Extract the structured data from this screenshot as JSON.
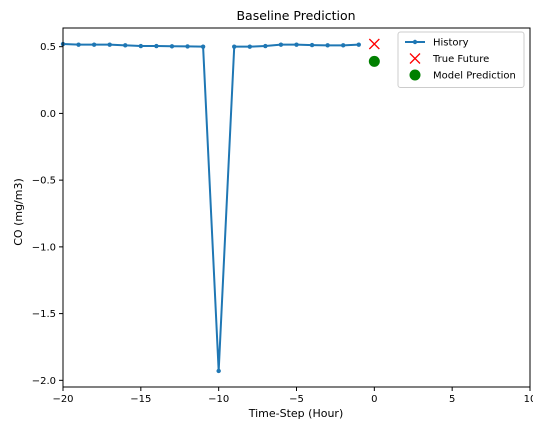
{
  "chart_data": {
    "type": "line",
    "title": "Baseline Prediction",
    "xlabel": "Time-Step (Hour)",
    "ylabel": "CO (mg/m3)",
    "xlim": [
      -20,
      10
    ],
    "ylim": [
      -2.05,
      0.64
    ],
    "xticks": [
      -20,
      -15,
      -10,
      -5,
      0,
      5,
      10
    ],
    "xtick_labels": [
      "−20",
      "−15",
      "−10",
      "−5",
      "0",
      "5",
      "10"
    ],
    "yticks": [
      0.5,
      0.0,
      -0.5,
      -1.0,
      -1.5,
      -2.0
    ],
    "ytick_labels": [
      "0.5",
      "0.0",
      "−0.5",
      "−1.0",
      "−1.5",
      "−2.0"
    ],
    "grid": false,
    "legend_position": "top-right",
    "series": [
      {
        "name": "History",
        "kind": "line-with-dots",
        "color": "#1f77b4",
        "x": [
          -20,
          -19,
          -18,
          -17,
          -16,
          -15,
          -14,
          -13,
          -12,
          -11,
          -10,
          -9,
          -8,
          -7,
          -6,
          -5,
          -4,
          -3,
          -2,
          -1
        ],
        "y": [
          0.52,
          0.515,
          0.515,
          0.515,
          0.51,
          0.505,
          0.505,
          0.503,
          0.502,
          0.5,
          -1.93,
          0.5,
          0.5,
          0.505,
          0.515,
          0.515,
          0.512,
          0.51,
          0.51,
          0.515
        ]
      },
      {
        "name": "True Future",
        "kind": "x-marker",
        "color": "#ff0000",
        "x": [
          0
        ],
        "y": [
          0.52
        ]
      },
      {
        "name": "Model Prediction",
        "kind": "circle-marker",
        "color": "#008000",
        "x": [
          0
        ],
        "y": [
          0.39
        ]
      }
    ]
  }
}
